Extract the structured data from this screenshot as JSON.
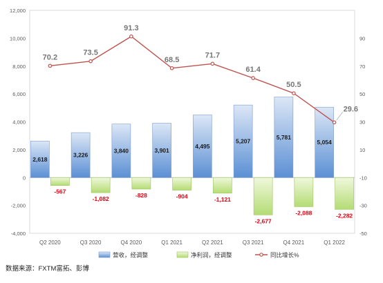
{
  "source_text": "数据来源：FXTM富拓、彭博",
  "chart_data": {
    "type": "bar",
    "categories": [
      "Q2 2020",
      "Q3 2020",
      "Q4 2020",
      "Q1 2021",
      "Q2 2021",
      "Q3 2021",
      "Q4 2021",
      "Q1 2022"
    ],
    "series": [
      {
        "name": "营收，经调整",
        "type": "bar",
        "axis": "left",
        "values": [
          2618,
          3226,
          3840,
          3901,
          4495,
          5207,
          5781,
          5054
        ],
        "labels": [
          "2,618",
          "3,226",
          "3,840",
          "3,901",
          "4,495",
          "5,207",
          "5,781",
          "5,054"
        ]
      },
      {
        "name": "净利润，经调整",
        "type": "bar",
        "axis": "left",
        "values": [
          -567,
          -1082,
          -828,
          -904,
          -1121,
          -2677,
          -2088,
          -2282
        ],
        "labels": [
          "-567",
          "-1,082",
          "-828",
          "-904",
          "-1,121",
          "-2,677",
          "-2,088",
          "-2,282"
        ]
      },
      {
        "name": "同比增长%",
        "type": "line",
        "axis": "right",
        "values": [
          70.2,
          73.5,
          91.3,
          68.5,
          71.7,
          61.4,
          50.5,
          29.6
        ],
        "labels": [
          "70.2",
          "73.5",
          "91.3",
          "68.5",
          "71.7",
          "61.4",
          "50.5",
          "29.6"
        ]
      }
    ],
    "left_axis": {
      "ylim": [
        -4000,
        12000
      ],
      "ticks": [
        -4000,
        -2000,
        0,
        2000,
        4000,
        6000,
        8000,
        10000,
        12000
      ],
      "tick_labels": [
        "-4,000",
        "-2,000",
        "0",
        "2,000",
        "4,000",
        "6,000",
        "8,000",
        "10,000",
        "12,000"
      ]
    },
    "right_axis": {
      "ylim": [
        -50,
        110
      ],
      "ticks": [
        -50,
        -30,
        -10,
        10,
        30,
        50,
        70,
        90
      ],
      "tick_labels": [
        "-50",
        "-30",
        "-10",
        "10",
        "30",
        "50",
        "70",
        "90"
      ]
    },
    "colors": {
      "revenue_top": "#dce7f6",
      "revenue_bottom": "#5b8fd4",
      "revenue_border": "#7a9ccc",
      "net_top": "#f0f8dc",
      "net_bottom": "#b4dc74",
      "net_border": "#9cc45c",
      "line": "#c0504d",
      "line_label": "#767676",
      "neg_label": "#e3000f"
    },
    "legend_position": "bottom"
  }
}
